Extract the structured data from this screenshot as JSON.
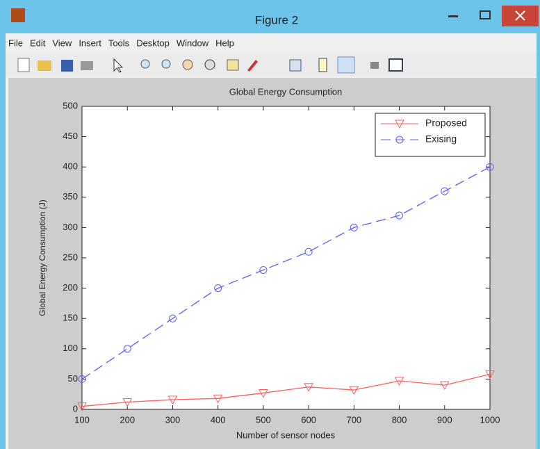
{
  "window": {
    "title": "Figure 2",
    "menu": [
      "File",
      "Edit",
      "View",
      "Insert",
      "Tools",
      "Desktop",
      "Window",
      "Help"
    ]
  },
  "chart_data": {
    "type": "line",
    "title": "Global Energy Consumption",
    "x_label": "Number of sensor nodes",
    "y_label": "Global Energy Consumption (J)",
    "x": [
      100,
      200,
      300,
      400,
      500,
      600,
      700,
      800,
      900,
      1000
    ],
    "series": [
      {
        "name": "Proposed",
        "color": "#ff5c5c",
        "marker": "triangle-down",
        "dash": "solid",
        "values": [
          5,
          12,
          16,
          18,
          27,
          37,
          32,
          47,
          40,
          58
        ]
      },
      {
        "name": "Exising",
        "color": "#5c5cff",
        "marker": "circle",
        "dash": "dashed",
        "values": [
          50,
          100,
          150,
          200,
          230,
          260,
          300,
          320,
          360,
          400
        ]
      }
    ],
    "xlim": [
      100,
      1000
    ],
    "xticks": [
      100,
      200,
      300,
      400,
      500,
      600,
      700,
      800,
      900,
      1000
    ],
    "ylim": [
      0,
      500
    ],
    "yticks": [
      0,
      50,
      100,
      150,
      200,
      250,
      300,
      350,
      400,
      450,
      500
    ],
    "grid": false,
    "legend": "top-right"
  }
}
